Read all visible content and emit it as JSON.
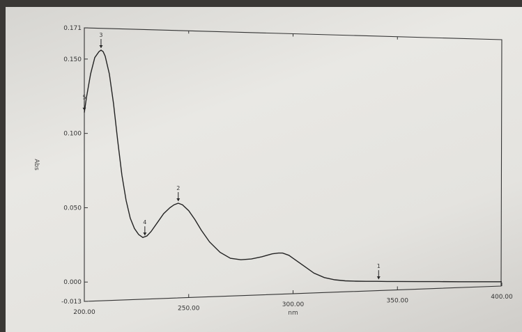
{
  "chart_data": {
    "type": "line",
    "xlabel": "nm",
    "ylabel": "Abs",
    "xlim": [
      200,
      400
    ],
    "ylim": [
      -0.013,
      0.171
    ],
    "x_ticks": [
      "200.00",
      "250.00",
      "300.00",
      "350.00",
      "400.00"
    ],
    "y_ticks": [
      {
        "value": 0.171,
        "label": "0.171"
      },
      {
        "value": 0.15,
        "label": "0.150"
      },
      {
        "value": 0.1,
        "label": "0.100"
      },
      {
        "value": 0.05,
        "label": "0.050"
      },
      {
        "value": 0.0,
        "label": "0.000"
      },
      {
        "value": -0.013,
        "label": "-0.013"
      }
    ],
    "series": [
      {
        "x": [
          200,
          201,
          203,
          205,
          207,
          208,
          209,
          210,
          212,
          214,
          216,
          218,
          220,
          222,
          224,
          226,
          228,
          230,
          232,
          235,
          238,
          241,
          243,
          245,
          247,
          250,
          253,
          256,
          260,
          265,
          270,
          275,
          280,
          285,
          290,
          293,
          295,
          298,
          300,
          305,
          310,
          315,
          320,
          325,
          330,
          335,
          340,
          345,
          350,
          360,
          370,
          380,
          390,
          400
        ],
        "y": [
          0.114,
          0.124,
          0.14,
          0.151,
          0.155,
          0.156,
          0.155,
          0.152,
          0.14,
          0.12,
          0.095,
          0.072,
          0.055,
          0.043,
          0.036,
          0.032,
          0.03,
          0.031,
          0.034,
          0.04,
          0.046,
          0.05,
          0.052,
          0.053,
          0.052,
          0.048,
          0.042,
          0.035,
          0.027,
          0.02,
          0.016,
          0.015,
          0.0155,
          0.017,
          0.019,
          0.0195,
          0.0195,
          0.018,
          0.016,
          0.011,
          0.006,
          0.003,
          0.0015,
          0.0008,
          0.0006,
          0.0005,
          0.0005,
          0.0004,
          0.0004,
          0.0003,
          0.0003,
          0.0002,
          0.0002,
          0.0002
        ],
        "color": "#222222"
      }
    ],
    "peak_markers": [
      {
        "x": 208,
        "y": 0.156,
        "label": "3"
      },
      {
        "x": 229,
        "y": 0.03,
        "label": "4"
      },
      {
        "x": 245,
        "y": 0.053,
        "label": "2"
      },
      {
        "x": 341,
        "y": 0.0005,
        "label": "1"
      },
      {
        "x": 200,
        "y": 0.114,
        "label": "5"
      }
    ],
    "grid": false
  }
}
